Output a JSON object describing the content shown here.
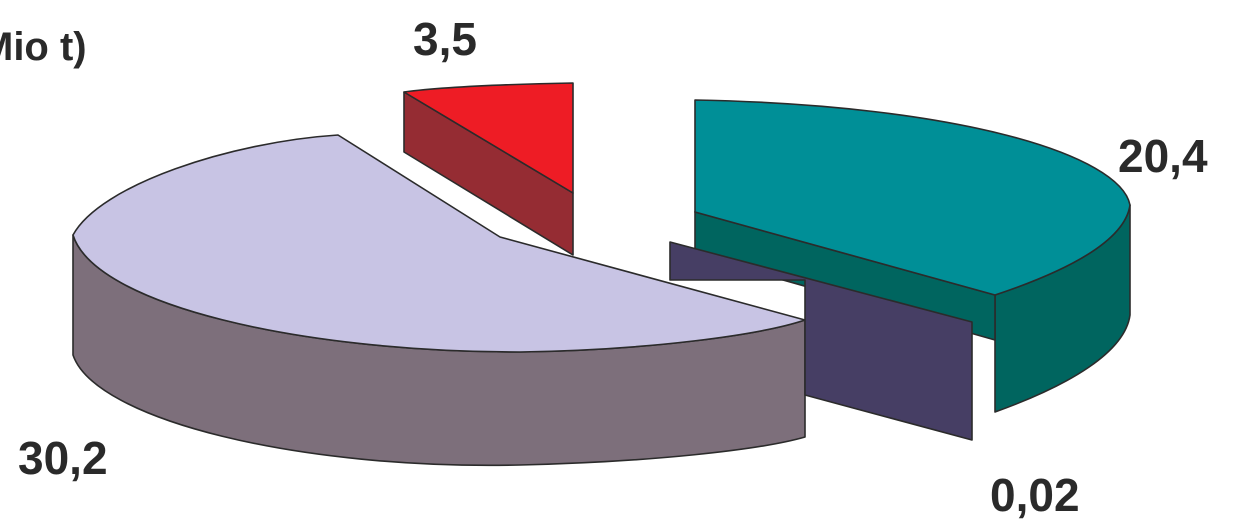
{
  "chart_data": {
    "type": "pie",
    "title": "Mio t)",
    "slices": [
      {
        "value": 30.2,
        "label": "30,2",
        "top_color": "#c8c4e4",
        "side_color": "#7d6f7b"
      },
      {
        "value": 3.5,
        "label": "3,5",
        "top_color": "#ee1c25",
        "side_color": "#952c33"
      },
      {
        "value": 20.4,
        "label": "20,4",
        "top_color": "#008f97",
        "side_color": "#00655f"
      },
      {
        "value": 0.02,
        "label": "0,02",
        "top_color": "#463e64",
        "side_color": "#463e64"
      }
    ],
    "legend": "none",
    "grid": false
  }
}
